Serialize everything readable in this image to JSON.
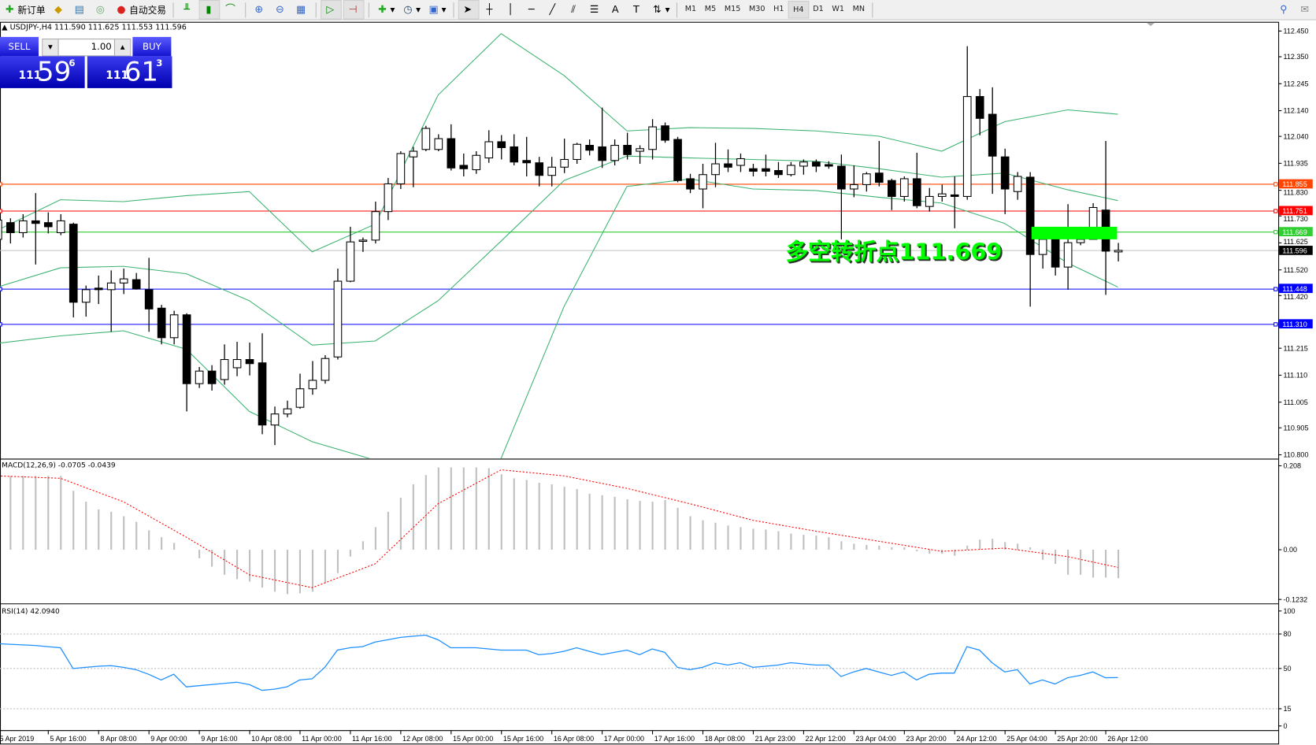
{
  "toolbar": {
    "new_order": "新订单",
    "auto_trading": "自动交易",
    "timeframes": [
      "M1",
      "M5",
      "M15",
      "M30",
      "H1",
      "H4",
      "D1",
      "W1",
      "MN"
    ],
    "active_timeframe": "H4"
  },
  "chart_header": "USDJPY-,H4  111.590 111.625 111.553 111.596",
  "one_click": {
    "sell": "SELL",
    "buy": "BUY",
    "lot": "1.00",
    "bid": {
      "big": "111",
      "main": "59",
      "pip": "6"
    },
    "ask": {
      "big": "111",
      "main": "61",
      "pip": "3"
    }
  },
  "annotation": {
    "text": "多空转折点111.669",
    "color": "#00ff00"
  },
  "macd_label": "MACD(12,26,9) -0.0705 -0.0439",
  "rsi_label": "RSI(14) 42.0940",
  "chart_data": [
    {
      "type": "candlestick",
      "symbol": "USDJPY-",
      "timeframe": "H4",
      "ylim": [
        110.8,
        112.45
      ],
      "price_ticks": [
        "112.450",
        "112.350",
        "112.245",
        "112.140",
        "112.040",
        "111.935",
        "111.830",
        "111.730",
        "111.625",
        "111.520",
        "111.420",
        "111.215",
        "111.110",
        "111.005",
        "110.905",
        "110.800"
      ],
      "x_ticks": [
        "5 Apr 2019",
        "5 Apr 16:00",
        "8 Apr 08:00",
        "9 Apr 00:00",
        "9 Apr 16:00",
        "10 Apr 08:00",
        "11 Apr 00:00",
        "11 Apr 16:00",
        "12 Apr 08:00",
        "15 Apr 00:00",
        "15 Apr 16:00",
        "16 Apr 08:00",
        "17 Apr 00:00",
        "17 Apr 16:00",
        "18 Apr 08:00",
        "21 Apr 23:00",
        "22 Apr 12:00",
        "23 Apr 04:00",
        "23 Apr 20:00",
        "24 Apr 12:00",
        "25 Apr 04:00",
        "25 Apr 20:00",
        "26 Apr 12:00"
      ],
      "candles": [
        [
          111.639,
          111.737,
          111.606,
          111.714
        ],
        [
          111.704,
          111.721,
          111.623,
          111.665
        ],
        [
          111.665,
          111.737,
          111.646,
          111.711
        ],
        [
          111.711,
          111.819,
          111.541,
          111.701
        ],
        [
          111.704,
          111.744,
          111.662,
          111.688
        ],
        [
          111.665,
          111.737,
          111.655,
          111.711
        ],
        [
          111.698,
          111.704,
          111.335,
          111.394
        ],
        [
          111.394,
          111.459,
          111.338,
          111.443
        ],
        [
          111.449,
          111.498,
          111.387,
          111.443
        ],
        [
          111.443,
          111.518,
          111.279,
          111.469
        ],
        [
          111.469,
          111.525,
          111.426,
          111.485
        ],
        [
          111.482,
          111.508,
          111.443,
          111.446
        ],
        [
          111.443,
          111.567,
          111.279,
          111.368
        ],
        [
          111.371,
          111.384,
          111.23,
          111.256
        ],
        [
          111.256,
          111.361,
          111.23,
          111.345
        ],
        [
          111.345,
          111.351,
          110.969,
          111.077
        ],
        [
          111.077,
          111.142,
          111.06,
          111.126
        ],
        [
          111.126,
          111.149,
          111.05,
          111.077
        ],
        [
          111.093,
          111.23,
          111.073,
          111.171
        ],
        [
          111.139,
          111.24,
          111.106,
          111.171
        ],
        [
          111.171,
          111.237,
          111.109,
          111.155
        ],
        [
          111.158,
          111.273,
          110.88,
          110.916
        ],
        [
          110.916,
          110.988,
          110.838,
          110.959
        ],
        [
          110.959,
          111.011,
          110.946,
          110.979
        ],
        [
          110.985,
          111.116,
          110.979,
          111.057
        ],
        [
          111.057,
          111.165,
          111.034,
          111.09
        ],
        [
          111.09,
          111.188,
          111.077,
          111.175
        ],
        [
          111.181,
          111.525,
          111.171,
          111.476
        ],
        [
          111.476,
          111.688,
          111.472,
          111.629
        ],
        [
          111.632,
          111.646,
          111.59,
          111.636
        ],
        [
          111.636,
          111.786,
          111.623,
          111.747
        ],
        [
          111.747,
          111.878,
          111.714,
          111.855
        ],
        [
          111.855,
          111.982,
          111.835,
          111.973
        ],
        [
          111.96,
          111.999,
          111.842,
          111.982
        ],
        [
          111.989,
          112.081,
          111.982,
          112.071
        ],
        [
          111.989,
          112.048,
          111.982,
          112.031
        ],
        [
          112.031,
          112.087,
          111.907,
          111.917
        ],
        [
          111.927,
          111.973,
          111.884,
          111.914
        ],
        [
          111.91,
          111.982,
          111.894,
          111.966
        ],
        [
          111.956,
          112.064,
          111.937,
          112.019
        ],
        [
          112.019,
          112.045,
          111.95,
          111.996
        ],
        [
          111.999,
          112.048,
          111.927,
          111.94
        ],
        [
          111.946,
          112.038,
          111.884,
          111.937
        ],
        [
          111.937,
          111.96,
          111.845,
          111.888
        ],
        [
          111.888,
          111.96,
          111.845,
          111.92
        ],
        [
          111.92,
          112.031,
          111.897,
          111.95
        ],
        [
          111.95,
          112.015,
          111.933,
          112.009
        ],
        [
          112.005,
          112.028,
          111.966,
          111.986
        ],
        [
          111.999,
          112.152,
          111.917,
          111.946
        ],
        [
          111.946,
          112.028,
          111.927,
          112.005
        ],
        [
          112.005,
          112.054,
          111.95,
          111.969
        ],
        [
          111.982,
          112.005,
          111.933,
          111.992
        ],
        [
          111.989,
          112.107,
          111.95,
          112.077
        ],
        [
          112.081,
          112.094,
          112.015,
          112.025
        ],
        [
          112.028,
          112.038,
          111.861,
          111.868
        ],
        [
          111.875,
          111.894,
          111.819,
          111.835
        ],
        [
          111.835,
          111.933,
          111.76,
          111.891
        ],
        [
          111.891,
          112.015,
          111.842,
          111.933
        ],
        [
          111.933,
          111.989,
          111.901,
          111.92
        ],
        [
          111.927,
          111.973,
          111.901,
          111.953
        ],
        [
          111.914,
          111.933,
          111.884,
          111.904
        ],
        [
          111.914,
          111.969,
          111.884,
          111.904
        ],
        [
          111.907,
          111.94,
          111.878,
          111.891
        ],
        [
          111.891,
          111.94,
          111.884,
          111.927
        ],
        [
          111.924,
          111.95,
          111.891,
          111.94
        ],
        [
          111.94,
          111.95,
          111.901,
          111.924
        ],
        [
          111.93,
          111.943,
          111.914,
          111.924
        ],
        [
          111.924,
          111.969,
          111.639,
          111.835
        ],
        [
          111.835,
          111.927,
          111.803,
          111.852
        ],
        [
          111.852,
          111.901,
          111.825,
          111.894
        ],
        [
          111.897,
          112.022,
          111.845,
          111.861
        ],
        [
          111.868,
          111.875,
          111.753,
          111.806
        ],
        [
          111.806,
          111.884,
          111.786,
          111.875
        ],
        [
          111.875,
          111.976,
          111.76,
          111.77
        ],
        [
          111.767,
          111.839,
          111.747,
          111.806
        ],
        [
          111.806,
          111.852,
          111.786,
          111.816
        ],
        [
          111.812,
          111.884,
          111.682,
          111.806
        ],
        [
          111.806,
          112.391,
          111.793,
          112.195
        ],
        [
          112.195,
          112.224,
          112.044,
          112.11
        ],
        [
          112.126,
          112.231,
          111.816,
          111.963
        ],
        [
          111.96,
          111.992,
          111.737,
          111.835
        ],
        [
          111.825,
          111.901,
          111.793,
          111.884
        ],
        [
          111.881,
          111.901,
          111.377,
          111.58
        ],
        [
          111.58,
          111.655,
          111.525,
          111.639
        ],
        [
          111.639,
          111.655,
          111.498,
          111.531
        ],
        [
          111.531,
          111.776,
          111.443,
          111.626
        ],
        [
          111.626,
          111.688,
          111.616,
          111.639
        ],
        [
          111.639,
          111.78,
          111.639,
          111.763
        ],
        [
          111.753,
          112.022,
          111.423,
          111.593
        ],
        [
          111.59,
          111.625,
          111.553,
          111.596
        ]
      ],
      "bollinger_every_5_bars": {
        "upper": [
          111.675,
          111.793,
          111.786,
          111.809,
          111.825,
          111.59,
          111.698,
          112.201,
          112.44,
          112.277,
          112.061,
          112.074,
          112.071,
          112.061,
          112.041,
          111.982,
          112.097,
          112.143,
          112.126
        ],
        "middle": [
          111.453,
          111.528,
          111.534,
          111.505,
          111.4,
          111.227,
          111.243,
          111.4,
          111.632,
          111.868,
          111.963,
          111.956,
          111.95,
          111.943,
          111.914,
          111.881,
          111.897,
          111.832,
          111.79
        ],
        "lower": [
          111.234,
          111.263,
          111.283,
          111.211,
          110.969,
          110.851,
          110.779,
          110.691,
          110.786,
          111.377,
          111.845,
          111.874,
          111.835,
          111.829,
          111.803,
          111.78,
          111.701,
          111.547,
          111.453
        ],
        "color": "#3cb371"
      },
      "levels": [
        {
          "price": "111.855",
          "color": "#ff4500"
        },
        {
          "price": "111.751",
          "color": "#ff0000"
        },
        {
          "price": "111.669",
          "color": "#32cd32"
        },
        {
          "price": "111.596",
          "color": "#000000",
          "line": "#c0c0c0"
        },
        {
          "price": "111.448",
          "color": "#0000ff"
        },
        {
          "price": "111.310",
          "color": "#0000ff"
        }
      ],
      "zone": {
        "from": 111.639,
        "to": 111.688,
        "color": "#00ff00"
      }
    },
    {
      "type": "bar",
      "name": "MACD(12,26,9)",
      "ylim": [
        -0.1232,
        0.208
      ],
      "ticks": [
        "0.208",
        "0.00",
        "-0.1232"
      ],
      "histogram": [
        0.183,
        0.183,
        0.183,
        0.183,
        0.183,
        0.183,
        0.146,
        0.119,
        0.1,
        0.094,
        0.083,
        0.069,
        0.048,
        0.031,
        0.017,
        0,
        -0.021,
        -0.042,
        -0.062,
        -0.073,
        -0.079,
        -0.094,
        -0.104,
        -0.11,
        -0.108,
        -0.104,
        -0.083,
        -0.058,
        -0.017,
        0.021,
        0.056,
        0.094,
        0.129,
        0.162,
        0.185,
        0.204,
        0.204,
        0.204,
        0.204,
        0.202,
        0.187,
        0.177,
        0.173,
        0.166,
        0.162,
        0.156,
        0.15,
        0.139,
        0.135,
        0.131,
        0.125,
        0.121,
        0.119,
        0.123,
        0.104,
        0.083,
        0.073,
        0.067,
        0.06,
        0.056,
        0.052,
        0.05,
        0.046,
        0.04,
        0.037,
        0.035,
        0.031,
        0.021,
        0.015,
        0.012,
        0.01,
        0.006,
        0.006,
        -0.004,
        -0.01,
        -0.01,
        -0.015,
        0.01,
        0.025,
        0.027,
        0.019,
        0.015,
        0.006,
        -0.025,
        -0.035,
        -0.062,
        -0.062,
        -0.069,
        -0.069,
        -0.0705
      ],
      "signal_every_5_bars": [
        0.183,
        0.177,
        0.119,
        0.031,
        -0.062,
        -0.094,
        -0.035,
        0.114,
        0.198,
        0.183,
        0.152,
        0.114,
        0.073,
        0.046,
        0.021,
        -0.004,
        0.004,
        -0.017,
        -0.0439
      ],
      "histogram_color": "#c0c0c0",
      "signal_color": "#ff0000"
    },
    {
      "type": "line",
      "name": "RSI(14)",
      "ylim": [
        0,
        100
      ],
      "ticks": [
        "100",
        "80",
        "50",
        "15",
        "0"
      ],
      "levels": [
        80,
        50,
        15
      ],
      "values": [
        71.5,
        71,
        70.5,
        70,
        69,
        68,
        50,
        51,
        52,
        52.5,
        51,
        49,
        45,
        40,
        45,
        34,
        35,
        36,
        37,
        38,
        36,
        31,
        32,
        34,
        40,
        41,
        51,
        66,
        68,
        69,
        73,
        75,
        77,
        78,
        79,
        75,
        68,
        68,
        68,
        67,
        66,
        66,
        66,
        62,
        63,
        65,
        68,
        65,
        62,
        64,
        66,
        62,
        67,
        64,
        51,
        49,
        51,
        55,
        53,
        55,
        51,
        52,
        53,
        55,
        54,
        53,
        53,
        43,
        47,
        50,
        47,
        44,
        47,
        40,
        45,
        46,
        46,
        69,
        66,
        55,
        47,
        49,
        36.5,
        40,
        36.5,
        42,
        44,
        47,
        42,
        42.094
      ],
      "color": "#1e90ff"
    }
  ]
}
